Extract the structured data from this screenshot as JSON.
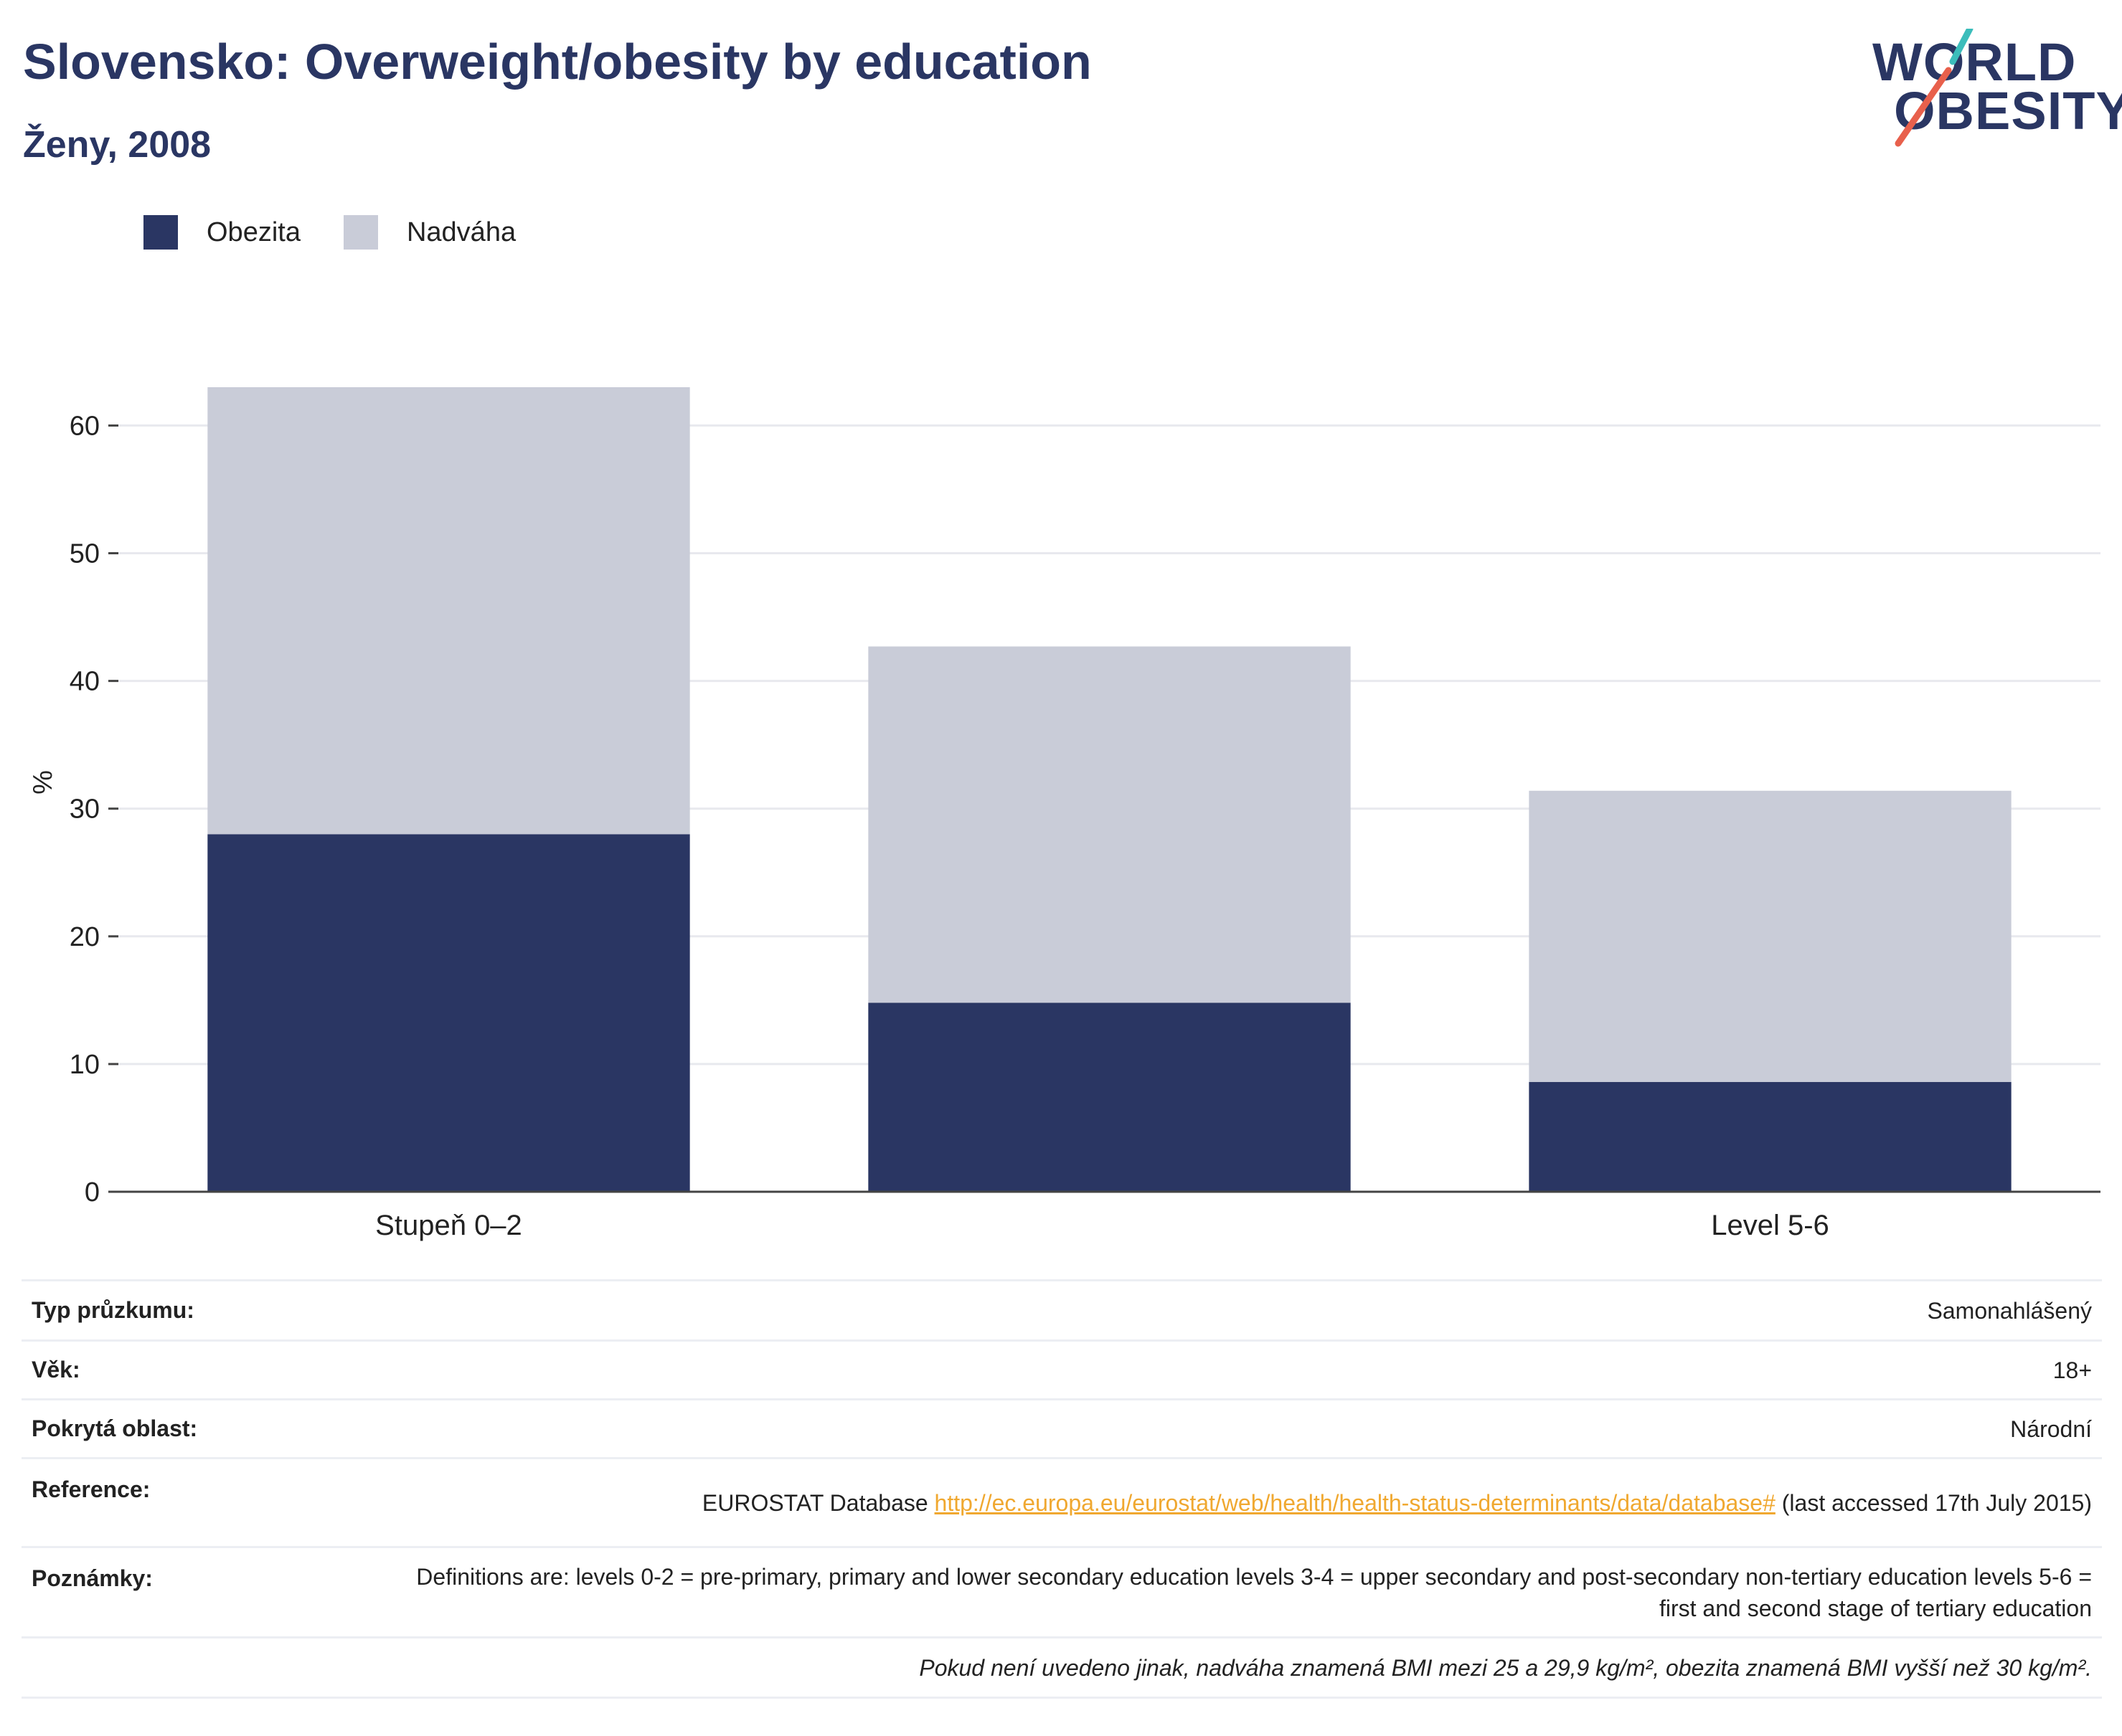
{
  "header": {
    "title": "Slovensko: Overweight/obesity by education",
    "subtitle": "Ženy, 2008"
  },
  "logo": {
    "line1": "WORLD",
    "line2": "OBESITY",
    "slash_colors": [
      "#3bbdbb",
      "#e8604c"
    ]
  },
  "legend": [
    {
      "label": "Obezita",
      "color": "#2a3663"
    },
    {
      "label": "Nadváha",
      "color": "#c9ccd8"
    }
  ],
  "chart_data": {
    "type": "bar",
    "stacked": true,
    "categories": [
      "Stupeň 0–2",
      "",
      "Level 5-6"
    ],
    "series": [
      {
        "name": "Obezita",
        "values": [
          28.0,
          14.8,
          8.6
        ],
        "color": "#2a3663"
      },
      {
        "name": "Nadváha",
        "values": [
          35.0,
          27.9,
          22.8
        ],
        "color": "#c9ccd8"
      }
    ],
    "ylabel": "%",
    "xlabel": "",
    "ylim": [
      0,
      63
    ],
    "yticks": [
      0,
      10,
      20,
      30,
      40,
      50,
      60
    ],
    "grid": true,
    "legend_position": "top-left"
  },
  "info": {
    "rows": [
      {
        "key": "Typ průzkumu:",
        "value": "Samonahlášený"
      },
      {
        "key": "Věk:",
        "value": "18+"
      },
      {
        "key": "Pokrytá oblast:",
        "value": "Národní"
      },
      {
        "key": "Reference:",
        "value_prefix": "EUROSTAT Database ",
        "link": "http://ec.europa.eu/eurostat/web/health/health-status-determinants/data/database#",
        "value_suffix": " (last accessed 17th July 2015)"
      },
      {
        "key": "Poznámky:",
        "value": "Definitions are: levels 0-2 = pre-primary, primary and lower secondary education levels 3-4 = upper secondary and post-secondary non-tertiary education levels 5-6 = first and second stage of tertiary education"
      }
    ],
    "footnote": "Pokud není uvedeno jinak, nadváha znamená BMI mezi 25 a 29,9 kg/m², obezita znamená BMI vyšší než 30 kg/m²."
  }
}
